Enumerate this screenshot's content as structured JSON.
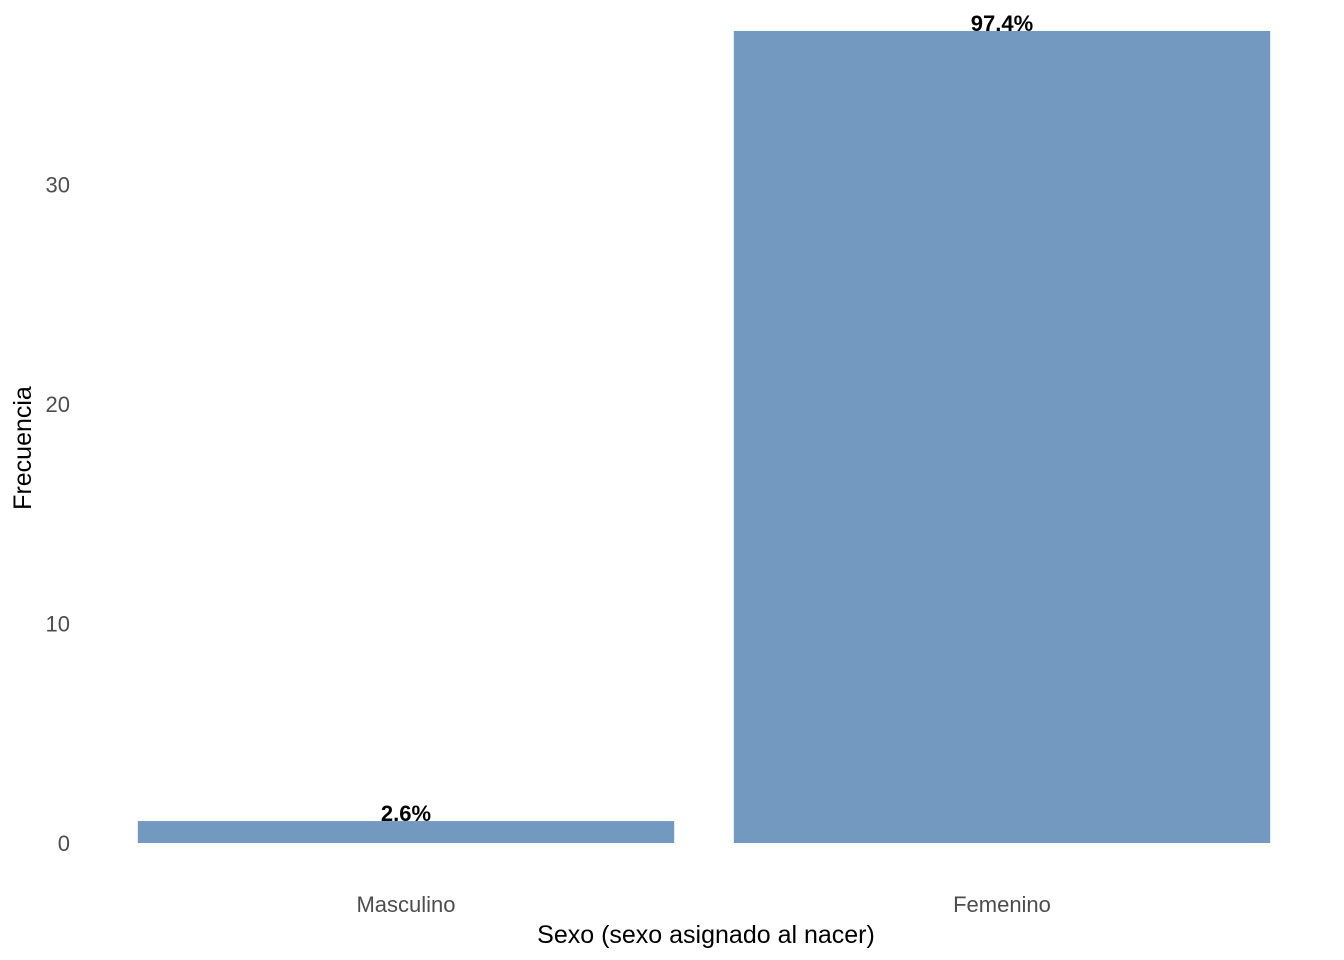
{
  "chart_data": {
    "type": "bar",
    "categories": [
      "Masculino",
      "Femenino"
    ],
    "values": [
      1,
      37
    ],
    "data_labels": [
      "2.6%",
      "97.4%"
    ],
    "title": "",
    "xlabel": "Sexo (sexo asignado al nacer)",
    "ylabel": "Frecuencia",
    "ylim": [
      0,
      38
    ],
    "yticks": [
      0,
      10,
      20,
      30
    ],
    "grid": false,
    "legend": "none",
    "bar_color": "#7399c1"
  }
}
